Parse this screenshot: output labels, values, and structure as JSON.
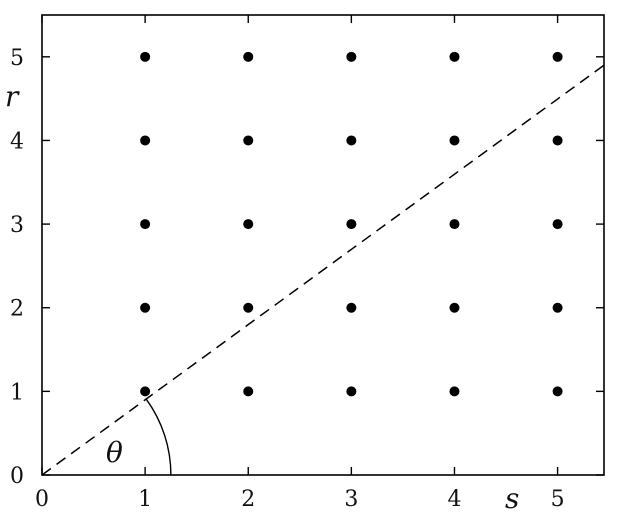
{
  "chart_data": {
    "type": "scatter",
    "title": "",
    "xlabel": "s",
    "ylabel": "r",
    "xlim": [
      0,
      5.45
    ],
    "ylim": [
      0,
      5.5
    ],
    "x_ticks": [
      0,
      1,
      2,
      3,
      4,
      5
    ],
    "y_ticks": [
      0,
      1,
      2,
      3,
      4,
      5
    ],
    "x_tick_labels": [
      "0",
      "1",
      "2",
      "3",
      "4",
      "5"
    ],
    "y_tick_labels": [
      "0",
      "1",
      "2",
      "3",
      "4",
      "5"
    ],
    "grid": false,
    "series": [
      {
        "points": [
          [
            1,
            1
          ],
          [
            2,
            1
          ],
          [
            3,
            1
          ],
          [
            4,
            1
          ],
          [
            5,
            1
          ],
          [
            1,
            2
          ],
          [
            2,
            2
          ],
          [
            3,
            2
          ],
          [
            4,
            2
          ],
          [
            5,
            2
          ],
          [
            1,
            3
          ],
          [
            2,
            3
          ],
          [
            3,
            3
          ],
          [
            4,
            3
          ],
          [
            5,
            3
          ],
          [
            1,
            4
          ],
          [
            2,
            4
          ],
          [
            3,
            4
          ],
          [
            4,
            4
          ],
          [
            5,
            4
          ],
          [
            1,
            5
          ],
          [
            2,
            5
          ],
          [
            3,
            5
          ],
          [
            4,
            5
          ],
          [
            5,
            5
          ]
        ]
      }
    ],
    "reference_line": {
      "style": "dashed",
      "slope": 0.9,
      "from": [
        0,
        0
      ],
      "to": [
        5.45,
        4.9
      ]
    },
    "angle_annotation": {
      "label": "θ",
      "radius": 1.25
    },
    "colors": {
      "marks": "#000000",
      "axes": "#000000"
    }
  }
}
